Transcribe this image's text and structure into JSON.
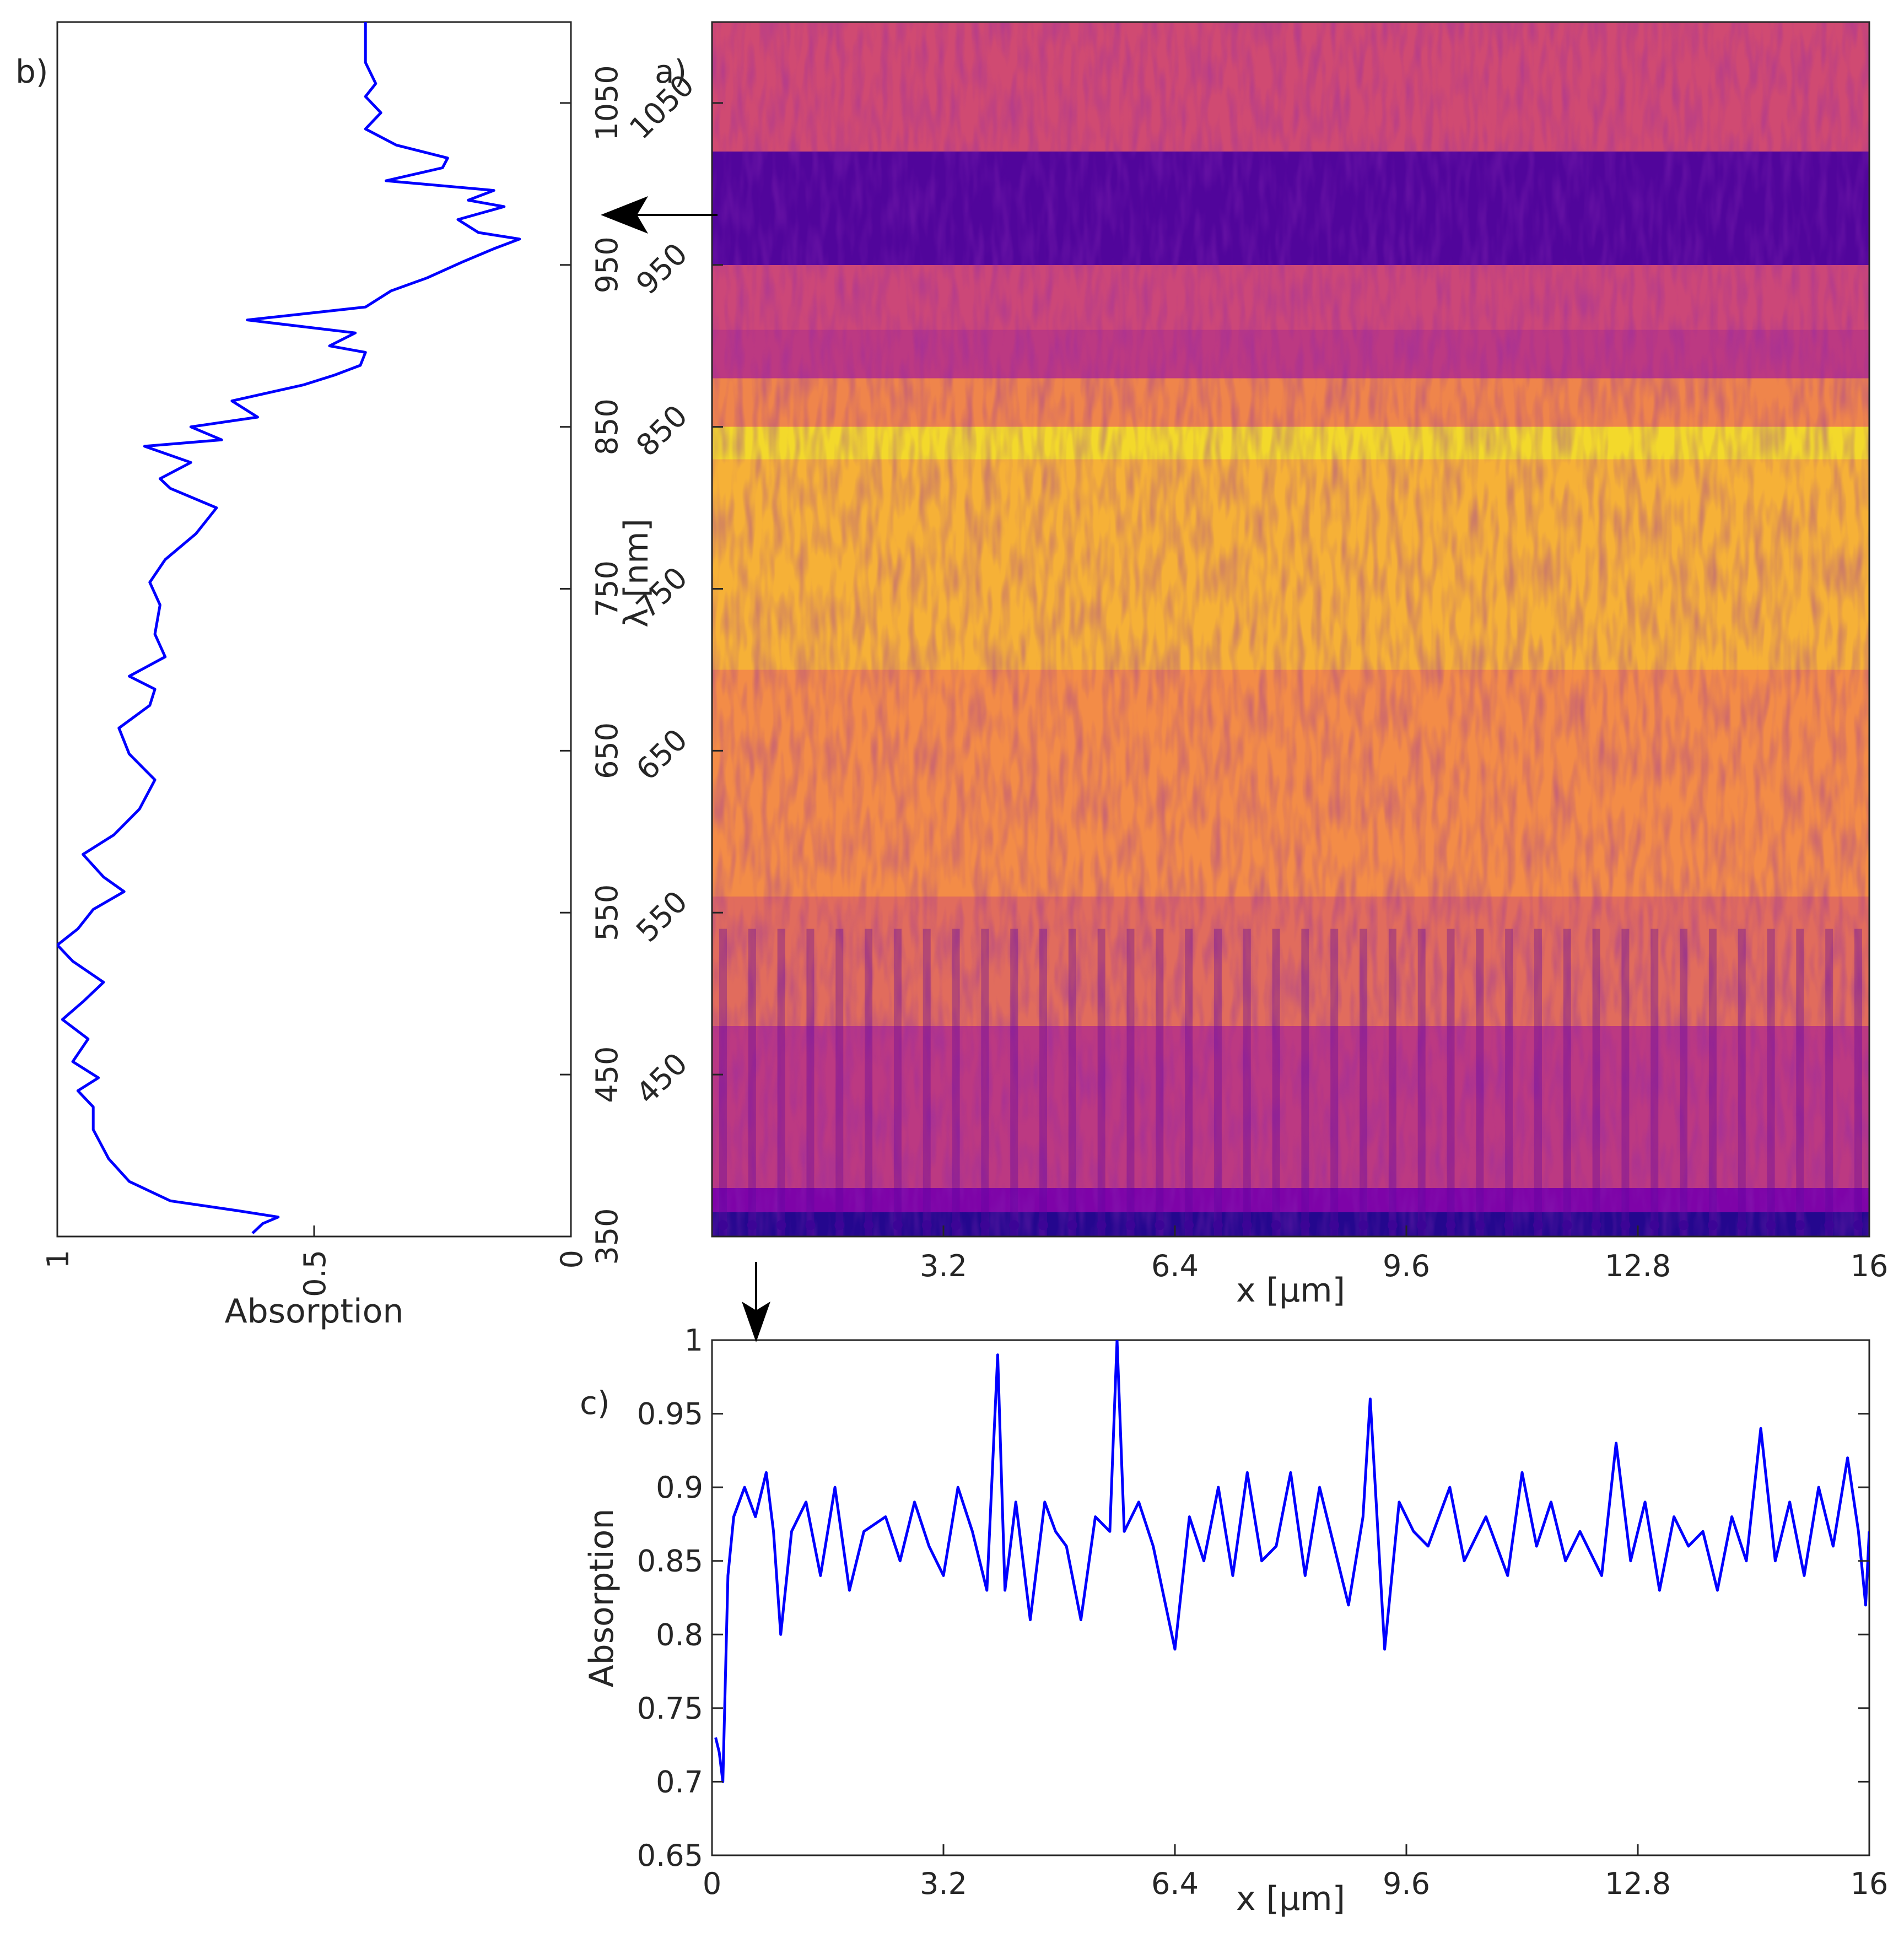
{
  "colors": {
    "line": "#0000ff",
    "axis": "#262626",
    "arrow": "#000000",
    "map_top": "#d04a72"
  },
  "chart_data": [
    {
      "id": "a",
      "panel_label": "a)",
      "type": "heatmap",
      "xlabel": "x [μm]",
      "ylabel": "λ [nm]",
      "xlim": [
        0,
        16
      ],
      "ylim": [
        350,
        1100
      ],
      "xticks": [
        3.2,
        6.4,
        9.6,
        12.8,
        16
      ],
      "xtick_labels": [
        "3.2",
        "6.4",
        "9.6",
        "12.8",
        "16"
      ],
      "yticks": [
        450,
        550,
        650,
        750,
        850,
        950,
        1050
      ],
      "ytick_labels": [
        "450",
        "550",
        "650",
        "750",
        "850",
        "950",
        "1050"
      ],
      "colormap": "plasma",
      "bands": [
        {
          "lambda_min": 350,
          "lambda_max": 365,
          "level": 0.05
        },
        {
          "lambda_min": 365,
          "lambda_max": 380,
          "level": 0.25
        },
        {
          "lambda_min": 380,
          "lambda_max": 480,
          "level": 0.45
        },
        {
          "lambda_min": 480,
          "lambda_max": 560,
          "level": 0.62
        },
        {
          "lambda_min": 560,
          "lambda_max": 700,
          "level": 0.72
        },
        {
          "lambda_min": 700,
          "lambda_max": 830,
          "level": 0.82
        },
        {
          "lambda_min": 830,
          "lambda_max": 850,
          "level": 0.92
        },
        {
          "lambda_min": 850,
          "lambda_max": 880,
          "level": 0.7
        },
        {
          "lambda_min": 880,
          "lambda_max": 910,
          "level": 0.45
        },
        {
          "lambda_min": 910,
          "lambda_max": 950,
          "level": 0.5
        },
        {
          "lambda_min": 950,
          "lambda_max": 1020,
          "level": 0.15
        },
        {
          "lambda_min": 1020,
          "lambda_max": 1100,
          "level": 0.55
        }
      ]
    },
    {
      "id": "b",
      "panel_label": "b)",
      "type": "line",
      "xlabel": "Absorption",
      "ylabel": "",
      "xlim": [
        1,
        0
      ],
      "ylim": [
        350,
        1100
      ],
      "xticks": [
        1,
        0.5,
        0
      ],
      "xtick_labels": [
        "1",
        "0.5",
        "0"
      ],
      "yticks": [
        350,
        450,
        550,
        650,
        750,
        850,
        950,
        1050
      ],
      "ytick_labels": [
        "350",
        "450",
        "550",
        "650",
        "750",
        "850",
        "950",
        "1050"
      ],
      "series": [
        {
          "name": "absorption vs wavelength",
          "points": [
            [
              0.62,
              352
            ],
            [
              0.6,
              358
            ],
            [
              0.57,
              362
            ],
            [
              0.65,
              366
            ],
            [
              0.78,
              372
            ],
            [
              0.86,
              384
            ],
            [
              0.9,
              398
            ],
            [
              0.93,
              416
            ],
            [
              0.93,
              430
            ],
            [
              0.96,
              440
            ],
            [
              0.92,
              448
            ],
            [
              0.97,
              458
            ],
            [
              0.94,
              472
            ],
            [
              0.99,
              484
            ],
            [
              0.95,
              495
            ],
            [
              0.91,
              507
            ],
            [
              0.97,
              520
            ],
            [
              1.0,
              530
            ],
            [
              0.96,
              540
            ],
            [
              0.93,
              552
            ],
            [
              0.87,
              563
            ],
            [
              0.91,
              572
            ],
            [
              0.95,
              586
            ],
            [
              0.89,
              598
            ],
            [
              0.84,
              614
            ],
            [
              0.81,
              632
            ],
            [
              0.86,
              648
            ],
            [
              0.88,
              664
            ],
            [
              0.82,
              678
            ],
            [
              0.81,
              688
            ],
            [
              0.86,
              696
            ],
            [
              0.79,
              708
            ],
            [
              0.81,
              722
            ],
            [
              0.8,
              740
            ],
            [
              0.82,
              754
            ],
            [
              0.79,
              768
            ],
            [
              0.73,
              784
            ],
            [
              0.69,
              800
            ],
            [
              0.78,
              812
            ],
            [
              0.8,
              818
            ],
            [
              0.74,
              828
            ],
            [
              0.83,
              838
            ],
            [
              0.68,
              842
            ],
            [
              0.74,
              850
            ],
            [
              0.61,
              856
            ],
            [
              0.66,
              866
            ],
            [
              0.52,
              876
            ],
            [
              0.46,
              882
            ],
            [
              0.41,
              888
            ],
            [
              0.4,
              896
            ],
            [
              0.47,
              900
            ],
            [
              0.42,
              908
            ],
            [
              0.63,
              916
            ],
            [
              0.4,
              924
            ],
            [
              0.35,
              934
            ],
            [
              0.28,
              942
            ],
            [
              0.21,
              952
            ],
            [
              0.15,
              960
            ],
            [
              0.1,
              966
            ],
            [
              0.18,
              970
            ],
            [
              0.22,
              978
            ],
            [
              0.13,
              986
            ],
            [
              0.2,
              990
            ],
            [
              0.15,
              996
            ],
            [
              0.36,
              1002
            ],
            [
              0.25,
              1010
            ],
            [
              0.24,
              1016
            ],
            [
              0.34,
              1024
            ],
            [
              0.4,
              1034
            ],
            [
              0.37,
              1044
            ],
            [
              0.4,
              1054
            ],
            [
              0.38,
              1062
            ],
            [
              0.4,
              1075
            ],
            [
              0.4,
              1100
            ]
          ]
        }
      ]
    },
    {
      "id": "c",
      "panel_label": "c)",
      "type": "line",
      "xlabel": "x [μm]",
      "ylabel": "Absorption",
      "xlim": [
        0,
        16
      ],
      "ylim": [
        0.65,
        1
      ],
      "xticks": [
        0,
        3.2,
        6.4,
        9.6,
        12.8,
        16
      ],
      "xtick_labels": [
        "0",
        "3.2",
        "6.4",
        "9.6",
        "12.8",
        "16"
      ],
      "yticks": [
        0.65,
        0.7,
        0.75,
        0.8,
        0.85,
        0.9,
        0.95,
        1
      ],
      "ytick_labels": [
        "0.65",
        "0.7",
        "0.75",
        "0.8",
        "0.85",
        "0.9",
        "0.95",
        "1"
      ],
      "series": [
        {
          "name": "absorption vs x",
          "points": [
            [
              0.05,
              0.73
            ],
            [
              0.1,
              0.72
            ],
            [
              0.15,
              0.7
            ],
            [
              0.22,
              0.84
            ],
            [
              0.3,
              0.88
            ],
            [
              0.45,
              0.9
            ],
            [
              0.6,
              0.88
            ],
            [
              0.75,
              0.91
            ],
            [
              0.85,
              0.87
            ],
            [
              0.95,
              0.8
            ],
            [
              1.1,
              0.87
            ],
            [
              1.3,
              0.89
            ],
            [
              1.5,
              0.84
            ],
            [
              1.7,
              0.9
            ],
            [
              1.9,
              0.83
            ],
            [
              2.1,
              0.87
            ],
            [
              2.4,
              0.88
            ],
            [
              2.6,
              0.85
            ],
            [
              2.8,
              0.89
            ],
            [
              3.0,
              0.86
            ],
            [
              3.2,
              0.84
            ],
            [
              3.4,
              0.9
            ],
            [
              3.6,
              0.87
            ],
            [
              3.8,
              0.83
            ],
            [
              3.95,
              0.99
            ],
            [
              4.05,
              0.83
            ],
            [
              4.2,
              0.89
            ],
            [
              4.4,
              0.81
            ],
            [
              4.6,
              0.89
            ],
            [
              4.75,
              0.87
            ],
            [
              4.9,
              0.86
            ],
            [
              5.1,
              0.81
            ],
            [
              5.3,
              0.88
            ],
            [
              5.5,
              0.87
            ],
            [
              5.6,
              1.0
            ],
            [
              5.7,
              0.87
            ],
            [
              5.9,
              0.89
            ],
            [
              6.1,
              0.86
            ],
            [
              6.4,
              0.79
            ],
            [
              6.6,
              0.88
            ],
            [
              6.8,
              0.85
            ],
            [
              7.0,
              0.9
            ],
            [
              7.2,
              0.84
            ],
            [
              7.4,
              0.91
            ],
            [
              7.6,
              0.85
            ],
            [
              7.8,
              0.86
            ],
            [
              8.0,
              0.91
            ],
            [
              8.2,
              0.84
            ],
            [
              8.4,
              0.9
            ],
            [
              8.6,
              0.86
            ],
            [
              8.8,
              0.82
            ],
            [
              9.0,
              0.88
            ],
            [
              9.1,
              0.96
            ],
            [
              9.3,
              0.79
            ],
            [
              9.5,
              0.89
            ],
            [
              9.7,
              0.87
            ],
            [
              9.9,
              0.86
            ],
            [
              10.2,
              0.9
            ],
            [
              10.4,
              0.85
            ],
            [
              10.7,
              0.88
            ],
            [
              11.0,
              0.84
            ],
            [
              11.2,
              0.91
            ],
            [
              11.4,
              0.86
            ],
            [
              11.6,
              0.89
            ],
            [
              11.8,
              0.85
            ],
            [
              12.0,
              0.87
            ],
            [
              12.3,
              0.84
            ],
            [
              12.5,
              0.93
            ],
            [
              12.7,
              0.85
            ],
            [
              12.9,
              0.89
            ],
            [
              13.1,
              0.83
            ],
            [
              13.3,
              0.88
            ],
            [
              13.5,
              0.86
            ],
            [
              13.7,
              0.87
            ],
            [
              13.9,
              0.83
            ],
            [
              14.1,
              0.88
            ],
            [
              14.3,
              0.85
            ],
            [
              14.5,
              0.94
            ],
            [
              14.7,
              0.85
            ],
            [
              14.9,
              0.89
            ],
            [
              15.1,
              0.84
            ],
            [
              15.3,
              0.9
            ],
            [
              15.5,
              0.86
            ],
            [
              15.7,
              0.92
            ],
            [
              15.85,
              0.87
            ],
            [
              15.95,
              0.82
            ],
            [
              16.0,
              0.87
            ]
          ]
        }
      ]
    }
  ]
}
